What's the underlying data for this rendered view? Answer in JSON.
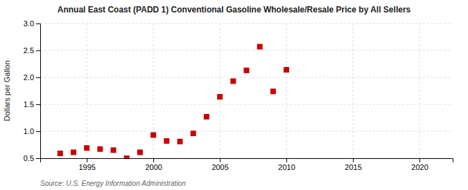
{
  "chart_data": {
    "type": "scatter",
    "title": "Annual East Coast (PADD 1) Conventional Gasoline Wholesale/Resale Price by All Sellers",
    "y_label": "Dollars per Gallon",
    "annotations": [
      "Source: U.S. Energy Information Administration"
    ],
    "x": [
      1993,
      1994,
      1995,
      1996,
      1997,
      1998,
      1999,
      2000,
      2001,
      2002,
      2003,
      2004,
      2005,
      2006,
      2007,
      2008,
      2009,
      2010
    ],
    "values": [
      0.59,
      0.61,
      0.69,
      0.67,
      0.65,
      0.5,
      0.61,
      0.93,
      0.82,
      0.81,
      0.96,
      1.27,
      1.64,
      1.93,
      2.13,
      2.57,
      1.74,
      2.14
    ],
    "xlim": [
      1991.5,
      2022.5
    ],
    "ylim": [
      0.5,
      3.0
    ],
    "xticks": [
      1995,
      2000,
      2005,
      2010,
      2015,
      2020
    ],
    "yticks": [
      0.5,
      {
        "value": 1.0,
        "label": "1.0"
      },
      1.5,
      {
        "value": 2.0,
        "label": "2.0"
      },
      2.5,
      {
        "value": 3.0,
        "label": "3.0"
      }
    ],
    "color": "#cc0000",
    "marker": "square",
    "grid": true
  }
}
